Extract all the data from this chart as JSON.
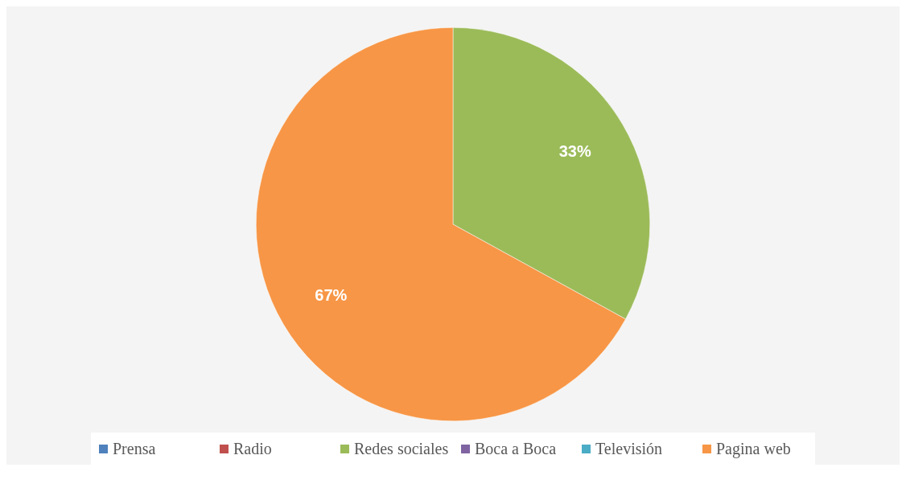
{
  "chart_data": {
    "type": "pie",
    "categories": [
      "Prensa",
      "Radio",
      "Redes sociales",
      "Boca a Boca",
      "Televisión",
      "Pagina web"
    ],
    "values": [
      0,
      0,
      33,
      0,
      0,
      67
    ],
    "colors": [
      "#4f81bd",
      "#c0504d",
      "#9bbb59",
      "#8064a2",
      "#4bacc6",
      "#f79646"
    ],
    "value_labels": [
      null,
      null,
      "33%",
      null,
      null,
      "67%"
    ],
    "legend": "bottom"
  }
}
